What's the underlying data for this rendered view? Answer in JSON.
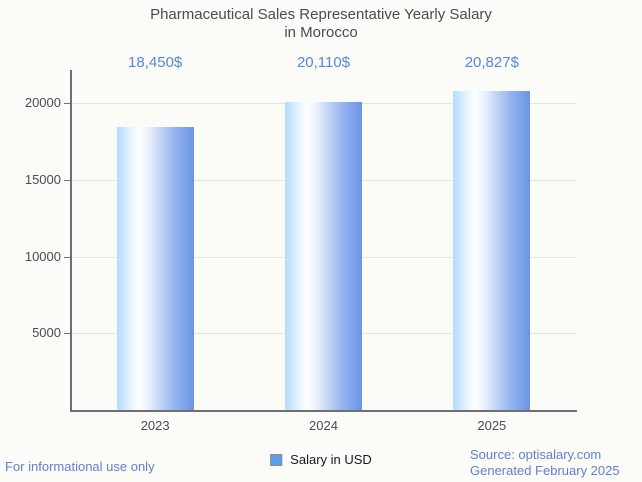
{
  "title": {
    "line1": "Pharmaceutical Sales Representative Yearly Salary",
    "line2": "in Morocco"
  },
  "chart_data": {
    "type": "bar",
    "title": "Pharmaceutical Sales Representative Yearly Salary in Morocco",
    "categories": [
      "2023",
      "2024",
      "2025"
    ],
    "values": [
      18450,
      20110,
      20827
    ],
    "value_labels": [
      "18,450$",
      "20,110$",
      "20,827$"
    ],
    "series": [
      {
        "name": "Salary in USD",
        "values": [
          18450,
          20110,
          20827
        ]
      }
    ],
    "xlabel": "",
    "ylabel": "",
    "ylim": [
      0,
      22170
    ],
    "yticks": [
      5000,
      10000,
      15000,
      20000
    ],
    "grid": "horizontal",
    "legend_position": "bottom"
  },
  "legend": {
    "label": "Salary in USD",
    "swatch_color": "#5c9ff0"
  },
  "footer": {
    "disclaimer": "For informational use only",
    "source": "Source: optisalary.com",
    "generated": "Generated February 2025"
  },
  "colors": {
    "background": "#fbfbf7",
    "title_text": "#4c4c4c",
    "axis_text": "#4c4c4c",
    "value_label": "#5986d9",
    "footer_text": "#667ecf",
    "axis_line": "#6f6f6f",
    "gridline": "#e4e4e4",
    "bar_gradient": [
      "#b4dbfd 0%",
      "#dceefe 14%",
      "#ffffff 28%",
      "#eef2fc 40%",
      "#c3d4f4 56%",
      "#92b2ee 76%",
      "#6b94e5 100%"
    ]
  }
}
